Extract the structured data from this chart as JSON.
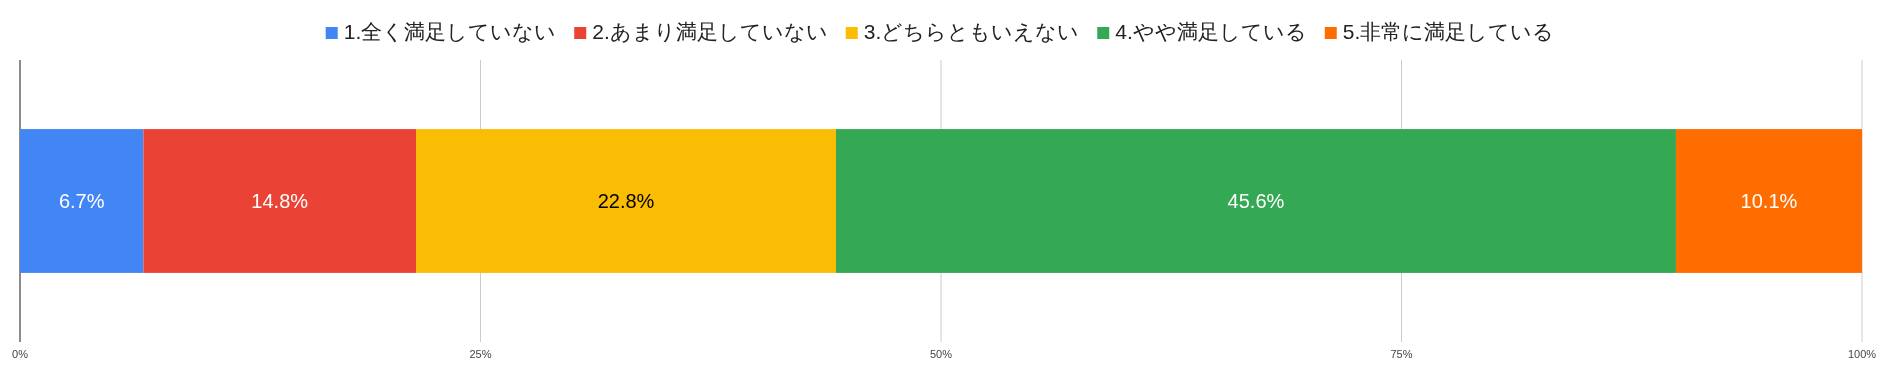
{
  "chart_data": {
    "type": "bar",
    "orientation": "horizontal",
    "stacked": true,
    "categories": [
      null
    ],
    "series": [
      {
        "name": "1.全く満足していない",
        "color": "#4285f4",
        "values": [
          6.7
        ],
        "value_labels": [
          "6.7%"
        ]
      },
      {
        "name": "2.あまり満足していない",
        "color": "#ea4335",
        "values": [
          14.8
        ],
        "value_labels": [
          "14.8%"
        ]
      },
      {
        "name": "3.どちらともいえない",
        "color": "#fbbc04",
        "values": [
          22.8
        ],
        "value_labels": [
          "22.8%"
        ]
      },
      {
        "name": "4.やや満足している",
        "color": "#34a853",
        "values": [
          45.6
        ],
        "value_labels": [
          "45.6%"
        ]
      },
      {
        "name": "5.非常に満足している",
        "color": "#ff6d01",
        "values": [
          10.1
        ],
        "value_labels": [
          "10.1%"
        ]
      }
    ],
    "xlim": [
      0,
      100
    ],
    "xticks": [
      {
        "value": 0,
        "label": "0%"
      },
      {
        "value": 25,
        "label": "25%"
      },
      {
        "value": 50,
        "label": "50%"
      },
      {
        "value": 75,
        "label": "75%"
      },
      {
        "value": 100,
        "label": "100%"
      }
    ],
    "grid": "x",
    "legend": "top"
  }
}
